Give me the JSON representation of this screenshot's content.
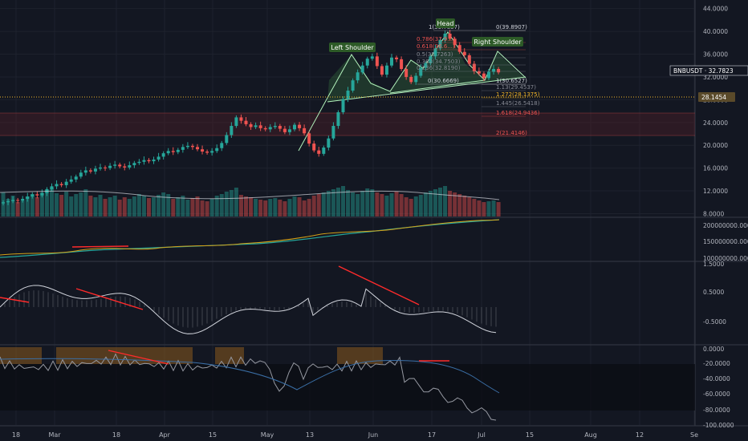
{
  "colors": {
    "background": "#131722",
    "grid": "#1e222d",
    "separator": "#363a45",
    "axis_text": "#b2b5be",
    "candle_up": "#26a69a",
    "candle_down": "#ef5350",
    "pattern_fill": "#4caf50",
    "pattern_line": "#b2f2bb",
    "label_bg": "#2d5a27",
    "fib_red": "#ef5350",
    "fib_grey": "#868993",
    "fib_white": "#d1d4dc",
    "fib_zone_red": "#5b1f27",
    "dotted_orange": "#f0b429",
    "price_tag": "#131722",
    "rsi_band": "#0b0e14",
    "highlight_box": "#8a5a1e",
    "line_orange": "#d4a017",
    "line_teal": "#26a69a",
    "divergence_red": "#ff2b2b",
    "volume_ma": "#d1d4dc"
  },
  "chart_data": {
    "type": "candlestick",
    "symbol": "BNBUSDT",
    "price_axis": {
      "ticks": [
        "44.0000",
        "40.0000",
        "36.0000",
        "32.0000",
        "28.0000",
        "24.0000",
        "20.0000",
        "16.0000",
        "12.0000",
        "8.0000"
      ],
      "ylim": [
        7.5,
        44.8
      ]
    },
    "time_axis": {
      "ticks": [
        "18",
        "Mar",
        "18",
        "Apr",
        "15",
        "May",
        "13",
        "Jun",
        "17",
        "Jul",
        "15",
        "Aug",
        "12",
        "Se"
      ]
    },
    "last_price_tag": "BNBUSDT · 32.7823",
    "level_tag": "28.1454",
    "pattern_labels": {
      "head": "Head",
      "left_shoulder": "Left Shoulder",
      "right_shoulder": "Right Shoulder"
    },
    "fib_levels": [
      {
        "label": "1(39.7857)",
        "color": "white"
      },
      {
        "label": "0(39.8907)",
        "color": "white"
      },
      {
        "label": "0.786(37.9...)",
        "color": "red"
      },
      {
        "label": "0.618(36.6...)",
        "color": "red"
      },
      {
        "label": "0.5(35.7263)",
        "color": "grey"
      },
      {
        "label": "0.382(34.7503)",
        "color": "grey"
      },
      {
        "label": "0.236(32.8190)",
        "color": "grey"
      },
      {
        "label": "0(30.6669)",
        "color": "white"
      },
      {
        "label": "1(30.6527)",
        "color": "white"
      },
      {
        "label": "1.13(29.4537)",
        "color": "grey"
      },
      {
        "label": "1.272(28.1375)",
        "color": "orange"
      },
      {
        "label": "1.445(26.5418)",
        "color": "grey"
      },
      {
        "label": "1.618(24.9436)",
        "color": "red"
      },
      {
        "label": "2(21.4146)",
        "color": "red"
      }
    ],
    "obv_axis": {
      "ticks": [
        "200000000.0000",
        "150000000.0000",
        "100000000.0000"
      ]
    },
    "macd_axis": {
      "ticks": [
        "1.5000",
        "0.5000",
        "-0.5000"
      ]
    },
    "wr_axis": {
      "ticks": [
        "0.0000",
        "-20.0000",
        "-40.0000",
        "-60.0000",
        "-80.0000",
        "-100.0000"
      ]
    },
    "price_series": [
      10.0,
      10.2,
      10.4,
      10.3,
      10.6,
      11.0,
      11.4,
      11.2,
      11.6,
      12.3,
      12.8,
      13.2,
      13.0,
      13.6,
      14.0,
      14.5,
      15.2,
      15.6,
      15.4,
      15.9,
      16.1,
      16.0,
      16.4,
      16.6,
      16.3,
      16.1,
      16.5,
      16.9,
      17.1,
      17.4,
      17.2,
      17.5,
      18.0,
      18.6,
      19.0,
      18.8,
      19.2,
      19.7,
      19.9,
      19.7,
      19.3,
      18.9,
      18.7,
      19.0,
      19.5,
      20.4,
      21.8,
      23.4,
      24.9,
      24.3,
      23.7,
      23.2,
      23.5,
      23.0,
      22.8,
      23.2,
      23.4,
      22.9,
      22.3,
      22.8,
      23.6,
      23.0,
      22.1,
      20.3,
      19.1,
      18.5,
      19.6,
      21.2,
      23.4,
      25.8,
      28.1,
      29.6,
      31.4,
      32.8,
      34.0,
      35.2,
      35.6,
      33.9,
      32.4,
      34.0,
      35.4,
      35.1,
      33.4,
      32.0,
      31.1,
      32.2,
      33.6,
      34.4,
      35.6,
      37.0,
      38.5,
      39.6,
      38.7,
      37.6,
      36.4,
      35.8,
      34.3,
      33.0,
      32.6,
      31.8,
      32.9,
      33.4,
      32.8
    ]
  }
}
